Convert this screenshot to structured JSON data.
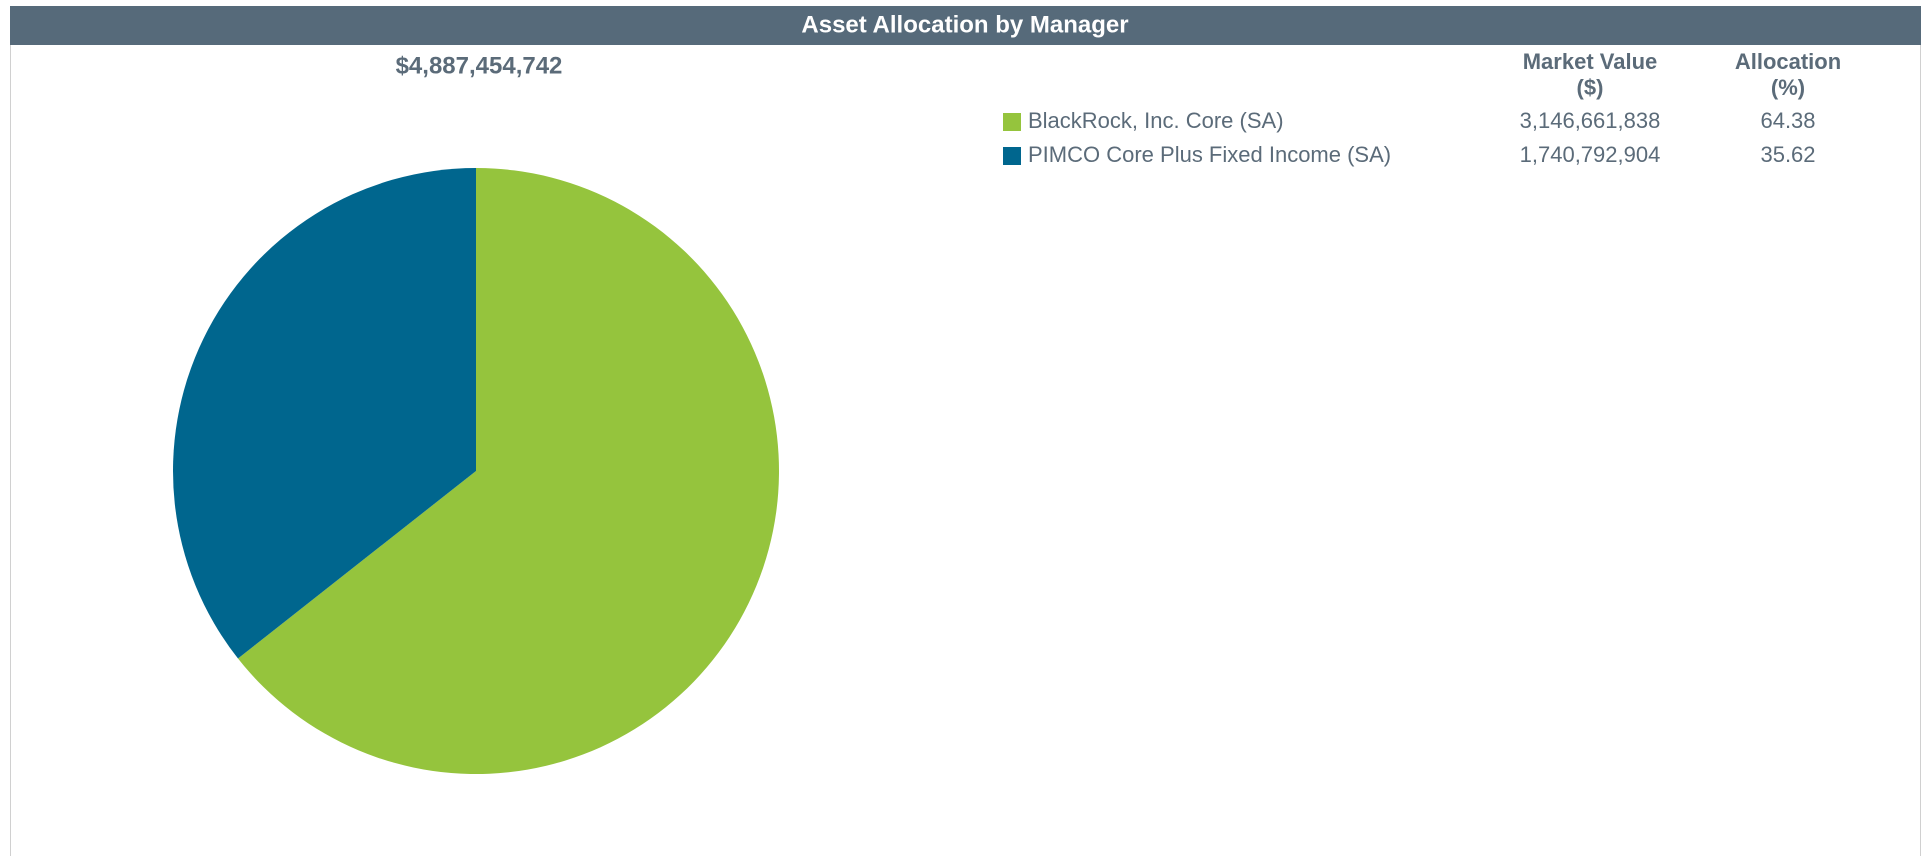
{
  "chart_data": {
    "type": "pie",
    "title": "Asset Allocation by Manager",
    "total": "$4,887,454,742",
    "column_headers": {
      "market_value": [
        "Market Value",
        "($)"
      ],
      "allocation": [
        "Allocation",
        "(%)"
      ]
    },
    "categories": [
      "BlackRock, Inc. Core (SA)",
      "PIMCO Core Plus Fixed Income (SA)"
    ],
    "market_values": [
      "3,146,661,838",
      "1,740,792,904"
    ],
    "values": [
      64.38,
      35.62
    ],
    "colors": [
      "#95c43d",
      "#00668e"
    ]
  }
}
